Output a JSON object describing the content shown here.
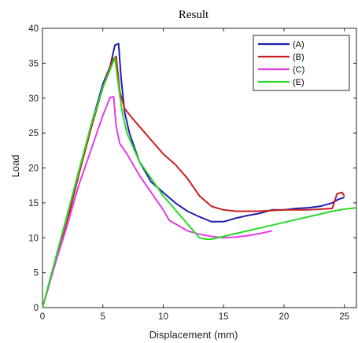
{
  "chart_data": {
    "type": "line",
    "title": "Result",
    "xlabel": "Displacement (mm)",
    "ylabel": "Load",
    "xlim": [
      0,
      26
    ],
    "ylim": [
      0,
      40
    ],
    "x_ticks": [
      0,
      5,
      10,
      15,
      20,
      25
    ],
    "y_ticks": [
      0,
      5,
      10,
      15,
      20,
      25,
      30,
      35,
      40
    ],
    "grid": false,
    "legend_position": "top-right",
    "series": [
      {
        "name": "(A)",
        "color": "#1f1fb4",
        "points": [
          [
            0,
            0
          ],
          [
            1,
            6
          ],
          [
            2,
            12
          ],
          [
            3,
            19
          ],
          [
            4,
            26
          ],
          [
            5,
            32
          ],
          [
            5.6,
            34.5
          ],
          [
            6,
            37.6
          ],
          [
            6.3,
            37.8
          ],
          [
            6.5,
            33
          ],
          [
            6.8,
            28
          ],
          [
            7.2,
            25
          ],
          [
            8,
            21
          ],
          [
            9,
            18
          ],
          [
            10,
            16.5
          ],
          [
            11,
            15
          ],
          [
            12,
            13.8
          ],
          [
            13,
            13
          ],
          [
            14,
            12.3
          ],
          [
            15,
            12.3
          ],
          [
            16,
            12.8
          ],
          [
            17,
            13.2
          ],
          [
            18,
            13.5
          ],
          [
            19,
            14
          ],
          [
            20,
            14
          ],
          [
            21,
            14.2
          ],
          [
            22,
            14.3
          ],
          [
            23,
            14.5
          ],
          [
            24,
            15
          ],
          [
            24.5,
            15.5
          ],
          [
            25,
            15.8
          ]
        ]
      },
      {
        "name": "(B)",
        "color": "#c8201e",
        "points": [
          [
            0,
            0
          ],
          [
            1,
            6
          ],
          [
            2,
            12
          ],
          [
            3,
            19
          ],
          [
            4,
            25.5
          ],
          [
            5,
            31.5
          ],
          [
            5.8,
            35.5
          ],
          [
            6.1,
            36
          ],
          [
            6.4,
            31
          ],
          [
            6.8,
            28.5
          ],
          [
            7.5,
            27
          ],
          [
            8,
            26
          ],
          [
            9,
            24
          ],
          [
            10,
            22
          ],
          [
            11,
            20.5
          ],
          [
            12,
            18.5
          ],
          [
            13,
            16
          ],
          [
            14,
            14.5
          ],
          [
            15,
            14
          ],
          [
            16,
            13.8
          ],
          [
            17,
            13.8
          ],
          [
            18,
            13.8
          ],
          [
            19,
            13.9
          ],
          [
            20,
            14
          ],
          [
            21,
            14
          ],
          [
            22,
            14
          ],
          [
            23,
            14.1
          ],
          [
            24,
            14.2
          ],
          [
            24.4,
            16.3
          ],
          [
            24.8,
            16.5
          ],
          [
            25,
            16
          ]
        ]
      },
      {
        "name": "(C)",
        "color": "#e63ce6",
        "points": [
          [
            0,
            0
          ],
          [
            1,
            6
          ],
          [
            2,
            11.5
          ],
          [
            3,
            17.5
          ],
          [
            4,
            22.5
          ],
          [
            5,
            27.5
          ],
          [
            5.6,
            30.1
          ],
          [
            5.9,
            30.2
          ],
          [
            6.1,
            26
          ],
          [
            6.4,
            23.5
          ],
          [
            7,
            22
          ],
          [
            8,
            19
          ],
          [
            9,
            16.5
          ],
          [
            10,
            14
          ],
          [
            10.5,
            12.5
          ],
          [
            11,
            12
          ],
          [
            12,
            11
          ],
          [
            13,
            10.5
          ],
          [
            14,
            10.2
          ],
          [
            15,
            10
          ],
          [
            16,
            10.1
          ],
          [
            17,
            10.3
          ],
          [
            18,
            10.6
          ],
          [
            19,
            11
          ]
        ]
      },
      {
        "name": "(E)",
        "color": "#2ad92a",
        "points": [
          [
            0,
            0
          ],
          [
            1,
            6.5
          ],
          [
            2,
            13
          ],
          [
            3,
            19.5
          ],
          [
            4,
            26
          ],
          [
            5,
            31.5
          ],
          [
            5.7,
            34.5
          ],
          [
            6,
            35.8
          ],
          [
            6.2,
            33
          ],
          [
            6.6,
            28
          ],
          [
            7,
            25
          ],
          [
            8,
            21
          ],
          [
            9,
            18.5
          ],
          [
            10,
            16
          ],
          [
            11,
            14
          ],
          [
            12,
            12
          ],
          [
            13,
            10
          ],
          [
            13.5,
            9.8
          ],
          [
            14,
            9.8
          ],
          [
            15,
            10.2
          ],
          [
            16,
            10.6
          ],
          [
            17,
            11
          ],
          [
            18,
            11.4
          ],
          [
            19,
            11.8
          ],
          [
            20,
            12.2
          ],
          [
            21,
            12.6
          ],
          [
            22,
            13
          ],
          [
            23,
            13.4
          ],
          [
            24,
            13.8
          ],
          [
            25,
            14.1
          ],
          [
            26,
            14.3
          ]
        ]
      }
    ]
  }
}
